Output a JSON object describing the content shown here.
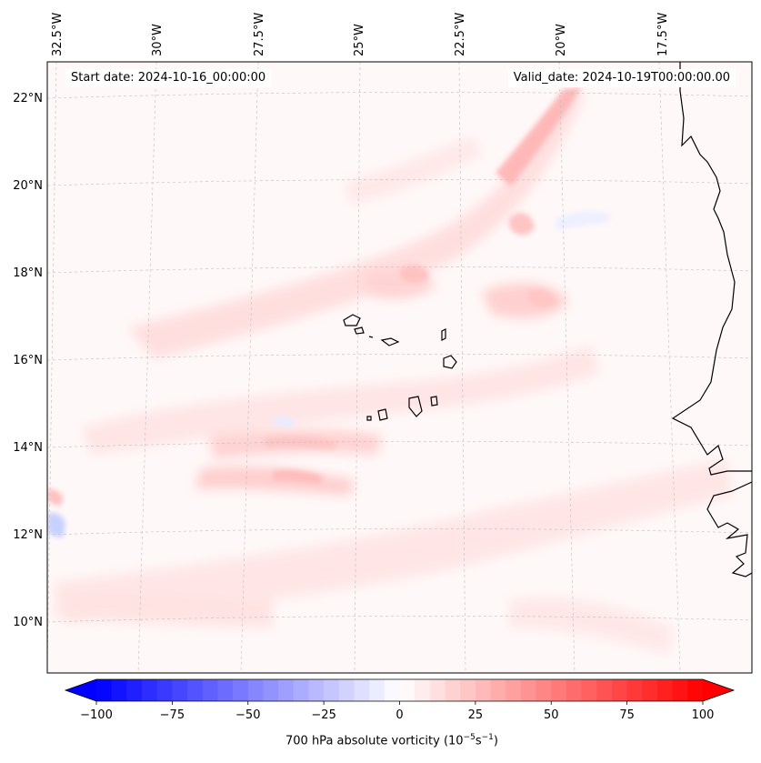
{
  "header": {
    "start_date": "Start date: 2024-10-16_00:00:00",
    "valid_date": "Valid_date: 2024-10-19T00:00:00.00"
  },
  "map": {
    "lon_labels": [
      "32.5°W",
      "30°W",
      "27.5°W",
      "25°W",
      "22.5°W",
      "20°W",
      "17.5°W"
    ],
    "lat_labels": [
      "22°N",
      "20°N",
      "18°N",
      "16°N",
      "14°N",
      "12°N",
      "10°N"
    ],
    "features": [
      "Cape Verde islands",
      "West African coastline"
    ]
  },
  "colorbar": {
    "title_main": "700 hPa absolute vorticity (10",
    "title_exp1": "−5",
    "title_mid": "s",
    "title_exp2": "−1",
    "title_end": ")",
    "tick_labels": [
      "−100",
      "−75",
      "−50",
      "−25",
      "0",
      "25",
      "50",
      "75",
      "100"
    ],
    "min": -100,
    "max": 100,
    "colors": {
      "negative": "#0000ff",
      "zero": "#ffffff",
      "positive": "#ff0000"
    }
  }
}
